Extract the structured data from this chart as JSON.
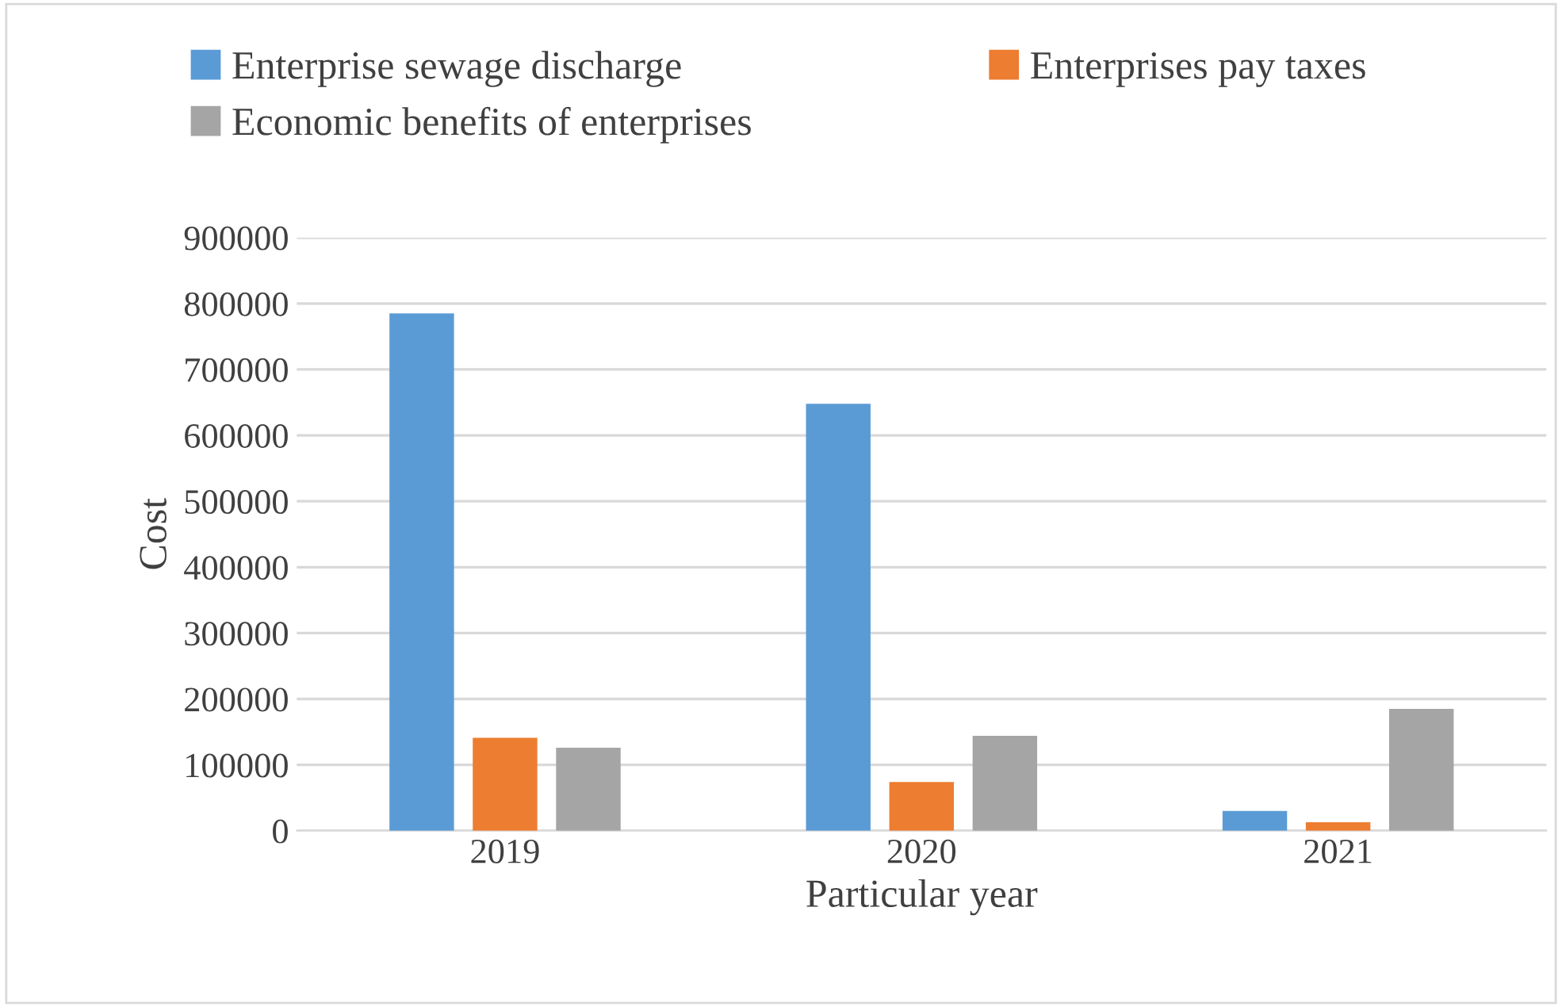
{
  "chart_data": {
    "type": "bar",
    "xlabel": "Particular year",
    "ylabel": "Cost",
    "categories": [
      "2019",
      "2020",
      "2021"
    ],
    "series": [
      {
        "name": "Enterprise sewage discharge",
        "color": "#5b9bd5",
        "values": [
          785000,
          648000,
          30000
        ]
      },
      {
        "name": "Enterprises pay taxes",
        "color": "#ed7d31",
        "values": [
          141000,
          74000,
          13000
        ]
      },
      {
        "name": "Economic benefits of enterprises",
        "color": "#a5a5a5",
        "values": [
          126000,
          144000,
          185000
        ]
      }
    ],
    "ylim": [
      0,
      900000
    ],
    "yticks": [
      0,
      100000,
      200000,
      300000,
      400000,
      500000,
      600000,
      700000,
      800000,
      900000
    ],
    "grid": "y",
    "legend": "top"
  }
}
